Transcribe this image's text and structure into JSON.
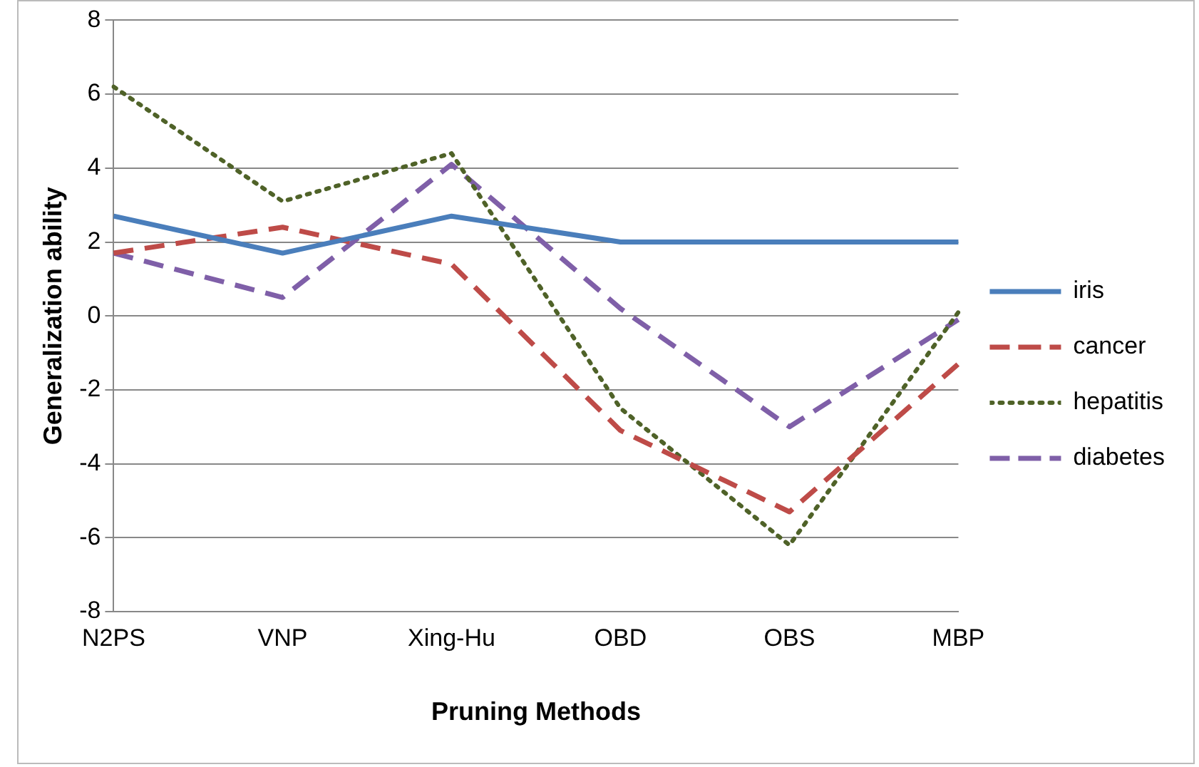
{
  "chart_data": {
    "type": "line",
    "xlabel": "Pruning Methods",
    "ylabel": "Generalization ability",
    "categories": [
      "N2PS",
      "VNP",
      "Xing-Hu",
      "OBD",
      "OBS",
      "MBP"
    ],
    "series": [
      {
        "name": "iris",
        "color": "#4a7ebb",
        "line_style": "solid",
        "values": [
          2.7,
          1.7,
          2.7,
          2.0,
          2.0,
          2.0
        ]
      },
      {
        "name": "cancer",
        "color": "#be4b48",
        "line_style": "dashed",
        "values": [
          1.7,
          2.4,
          1.4,
          -3.1,
          -5.3,
          -1.3
        ]
      },
      {
        "name": "hepatitis",
        "color": "#4f6228",
        "line_style": "dotted",
        "values": [
          6.2,
          3.1,
          4.4,
          -2.5,
          -6.2,
          0.1
        ]
      },
      {
        "name": "diabetes",
        "color": "#7f5fa8",
        "line_style": "dashed",
        "values": [
          1.7,
          0.5,
          4.1,
          0.2,
          -3.0,
          -0.1
        ]
      }
    ],
    "ylim": [
      -8,
      8
    ],
    "yticks": [
      -8,
      -6,
      -4,
      -2,
      0,
      2,
      4,
      6,
      8
    ],
    "grid": "y",
    "legend": "right",
    "marker": "none"
  }
}
